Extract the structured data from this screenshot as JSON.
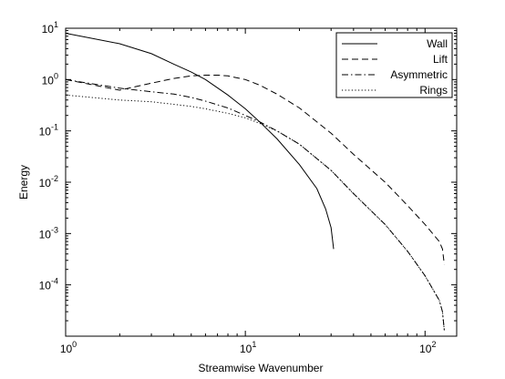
{
  "chart_data": {
    "type": "line",
    "title": "",
    "xlabel": "Streamwise Wavenumber",
    "ylabel": "Energy",
    "xscale": "log",
    "yscale": "log",
    "xlim": [
      1,
      150
    ],
    "ylim": [
      1e-05,
      10
    ],
    "grid": false,
    "legend_position": "top-right",
    "x_ticks": [
      {
        "value": 1,
        "base": "10",
        "exp": "0"
      },
      {
        "value": 10,
        "base": "10",
        "exp": "1"
      },
      {
        "value": 100,
        "base": "10",
        "exp": "2"
      }
    ],
    "y_ticks": [
      {
        "value": 0.0001,
        "base": "10",
        "exp": "-4"
      },
      {
        "value": 0.001,
        "base": "10",
        "exp": "-3"
      },
      {
        "value": 0.01,
        "base": "10",
        "exp": "-2"
      },
      {
        "value": 0.1,
        "base": "10",
        "exp": "-1"
      },
      {
        "value": 1,
        "base": "10",
        "exp": "0"
      },
      {
        "value": 10,
        "base": "10",
        "exp": "1"
      }
    ],
    "series": [
      {
        "name": "Wall",
        "style": "solid",
        "x": [
          1,
          2,
          3,
          4,
          5,
          6,
          8,
          10,
          12,
          15,
          20,
          25,
          28,
          30,
          31
        ],
        "y": [
          8,
          5,
          3.2,
          2.0,
          1.4,
          1.0,
          0.5,
          0.27,
          0.15,
          0.07,
          0.022,
          0.0075,
          0.003,
          0.0013,
          0.0005
        ]
      },
      {
        "name": "Lift",
        "style": "dashed",
        "x": [
          1,
          2,
          3,
          4,
          5,
          6,
          7,
          8,
          10,
          12,
          15,
          20,
          30,
          40,
          60,
          80,
          100,
          120,
          125,
          128
        ],
        "y": [
          1.0,
          0.62,
          0.85,
          1.05,
          1.18,
          1.22,
          1.22,
          1.18,
          1.0,
          0.78,
          0.52,
          0.28,
          0.09,
          0.035,
          0.01,
          0.0035,
          0.0015,
          0.0007,
          0.0005,
          0.00025
        ]
      },
      {
        "name": "Asymmetric",
        "style": "dashdot",
        "x": [
          1,
          2,
          3,
          4,
          5,
          6,
          8,
          10,
          12,
          15,
          20,
          30,
          40,
          60,
          80,
          100,
          120,
          125,
          128
        ],
        "y": [
          1.0,
          0.68,
          0.58,
          0.52,
          0.45,
          0.38,
          0.28,
          0.2,
          0.15,
          0.1,
          0.055,
          0.017,
          0.006,
          0.0015,
          0.00045,
          0.00015,
          5e-05,
          3e-05,
          1.3e-05
        ]
      },
      {
        "name": "Rings",
        "style": "dotted",
        "x": [
          1,
          2,
          3,
          4,
          5,
          6,
          8,
          10,
          12,
          15,
          20,
          30,
          40,
          60,
          80,
          100,
          120,
          125,
          128
        ],
        "y": [
          0.5,
          0.4,
          0.37,
          0.33,
          0.3,
          0.27,
          0.22,
          0.18,
          0.14,
          0.1,
          0.055,
          0.017,
          0.006,
          0.0015,
          0.00045,
          0.00015,
          5e-05,
          3e-05,
          1.3e-05
        ]
      }
    ]
  }
}
